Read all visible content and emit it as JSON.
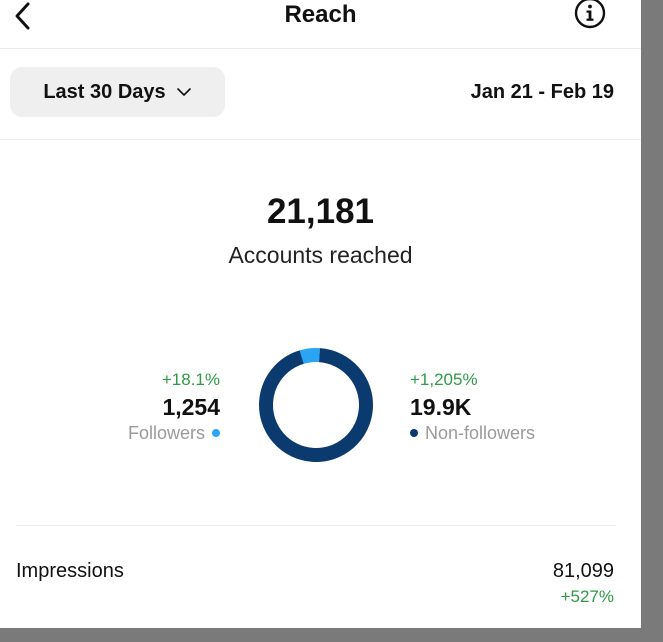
{
  "header": {
    "title": "Reach",
    "back_icon": "chevron-left-icon",
    "info_icon": "info-icon"
  },
  "filter": {
    "range_label": "Last 30 Days",
    "dropdown_icon": "chevron-down-icon",
    "date_range": "Jan 21 - Feb 19"
  },
  "summary": {
    "accounts_reached_value": "21,181",
    "accounts_reached_label": "Accounts reached"
  },
  "breakdown": {
    "followers": {
      "delta": "+18.1%",
      "value": "1,254",
      "label": "Followers",
      "color": "#2aa4f4"
    },
    "non_followers": {
      "delta": "+1,205%",
      "value": "19.9K",
      "label": "Non-followers",
      "color": "#0b3a6e"
    }
  },
  "chart_data": {
    "type": "pie",
    "style": "donut",
    "categories": [
      "Followers",
      "Non-followers"
    ],
    "values": [
      1254,
      19927
    ],
    "colors": [
      "#2aa4f4",
      "#0b3a6e"
    ]
  },
  "metrics": {
    "impressions_label": "Impressions",
    "impressions_value": "81,099",
    "impressions_delta": "+527%"
  },
  "colors": {
    "positive": "#2e9a46",
    "secondary_text": "#9a9a9a",
    "button_bg": "#efefef"
  }
}
